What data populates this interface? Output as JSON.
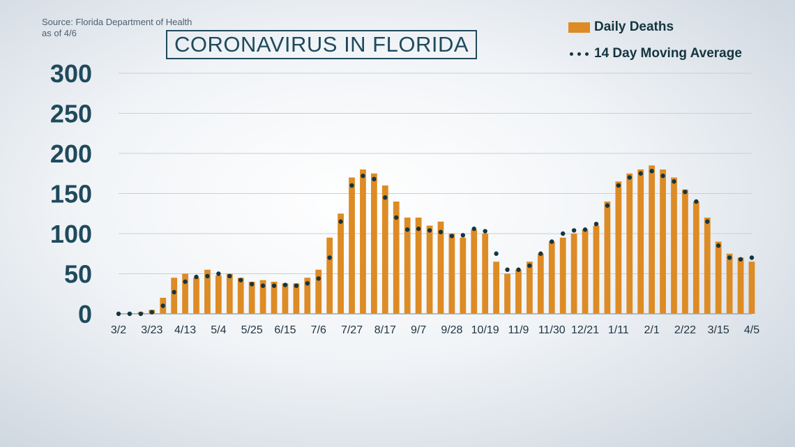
{
  "source": {
    "line1": "Source: Florida Department of Health",
    "line2": "as of 4/6"
  },
  "title": "CORONAVIRUS IN FLORIDA",
  "legend": {
    "bars_label": "Daily Deaths",
    "line_label": "14 Day Moving Average"
  },
  "colors": {
    "bars": "#dd8b25",
    "moving_average": "#153540",
    "axis_text": "#1f4a5c",
    "grid": "#c8cfd6"
  },
  "chart_data": {
    "type": "bar",
    "ylim": [
      0,
      300
    ],
    "yticks": [
      0,
      50,
      100,
      150,
      200,
      250,
      300
    ],
    "xticks": [
      "3/2",
      "3/23",
      "4/13",
      "5/4",
      "5/25",
      "6/15",
      "7/6",
      "7/27",
      "8/17",
      "9/7",
      "9/28",
      "10/19",
      "11/9",
      "11/30",
      "12/21",
      "1/11",
      "2/1",
      "2/22",
      "3/15",
      "4/5"
    ],
    "grid": true,
    "legend_position": "top-right",
    "series": [
      {
        "name": "Daily Deaths",
        "type": "bar",
        "note": "approximate weekly-sampled daily death counts (period-end date, value)",
        "x": [
          "3/2",
          "3/9",
          "3/16",
          "3/23",
          "3/30",
          "4/6",
          "4/13",
          "4/20",
          "4/27",
          "5/4",
          "5/11",
          "5/18",
          "5/25",
          "6/1",
          "6/8",
          "6/15",
          "6/22",
          "6/29",
          "7/6",
          "7/13",
          "7/20",
          "7/27",
          "8/3",
          "8/10",
          "8/17",
          "8/24",
          "8/31",
          "9/7",
          "9/14",
          "9/21",
          "9/28",
          "10/5",
          "10/12",
          "10/19",
          "10/26",
          "11/2",
          "11/9",
          "11/16",
          "11/23",
          "11/30",
          "12/7",
          "12/14",
          "12/21",
          "12/28",
          "1/4",
          "1/11",
          "1/18",
          "1/25",
          "2/1",
          "2/8",
          "2/15",
          "2/22",
          "3/1",
          "3/8",
          "3/15",
          "3/22",
          "3/29",
          "4/5"
        ],
        "values": [
          0,
          1,
          2,
          5,
          20,
          45,
          50,
          45,
          55,
          48,
          50,
          45,
          40,
          42,
          40,
          38,
          38,
          45,
          55,
          95,
          125,
          170,
          180,
          175,
          160,
          140,
          120,
          120,
          110,
          115,
          100,
          95,
          105,
          100,
          65,
          50,
          55,
          65,
          75,
          90,
          95,
          100,
          105,
          110,
          140,
          165,
          175,
          180,
          185,
          180,
          170,
          155,
          140,
          120,
          90,
          75,
          70,
          65
        ]
      },
      {
        "name": "14 Day Moving Average",
        "type": "line",
        "x": [
          "3/2",
          "3/9",
          "3/16",
          "3/23",
          "3/30",
          "4/6",
          "4/13",
          "4/20",
          "4/27",
          "5/4",
          "5/11",
          "5/18",
          "5/25",
          "6/1",
          "6/8",
          "6/15",
          "6/22",
          "6/29",
          "7/6",
          "7/13",
          "7/20",
          "7/27",
          "8/3",
          "8/10",
          "8/17",
          "8/24",
          "8/31",
          "9/7",
          "9/14",
          "9/21",
          "9/28",
          "10/5",
          "10/12",
          "10/19",
          "10/26",
          "11/2",
          "11/9",
          "11/16",
          "11/23",
          "11/30",
          "12/7",
          "12/14",
          "12/21",
          "12/28",
          "1/4",
          "1/11",
          "1/18",
          "1/25",
          "2/1",
          "2/8",
          "2/15",
          "2/22",
          "3/1",
          "3/8",
          "3/15",
          "3/22",
          "3/29",
          "4/5"
        ],
        "values": [
          0,
          0,
          0,
          2,
          10,
          27,
          40,
          46,
          47,
          50,
          47,
          42,
          37,
          35,
          35,
          36,
          35,
          38,
          44,
          70,
          115,
          160,
          172,
          168,
          145,
          120,
          105,
          106,
          104,
          102,
          97,
          98,
          106,
          103,
          75,
          55,
          55,
          60,
          75,
          90,
          100,
          104,
          105,
          112,
          135,
          160,
          170,
          175,
          178,
          172,
          165,
          152,
          140,
          115,
          85,
          70,
          68,
          70
        ]
      }
    ]
  }
}
